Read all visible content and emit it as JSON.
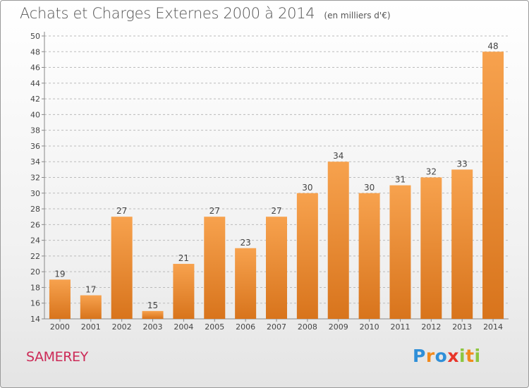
{
  "header": {
    "title": "Achats et Charges Externes 2000 à 2014",
    "unit": "(en milliers d'€)"
  },
  "footer": {
    "place": "SAMEREY",
    "brand_letters": [
      {
        "char": "P",
        "color": "#2f8fd8"
      },
      {
        "char": "r",
        "color": "#f28a1c"
      },
      {
        "char": "o",
        "color": "#2f8fd8"
      },
      {
        "char": "x",
        "color": "#e8352a"
      },
      {
        "char": "i",
        "color": "#8cc63f"
      },
      {
        "char": "t",
        "color": "#f28a1c"
      },
      {
        "char": "i",
        "color": "#8cc63f"
      }
    ]
  },
  "colors": {
    "bar_top": "#f7a24e",
    "bar_bottom": "#d8741c",
    "grid": "#bbbbbb",
    "text": "#444444",
    "place": "#cc2a57"
  },
  "chart_data": {
    "type": "bar",
    "title": "Achats et Charges Externes 2000 à 2014",
    "subtitle": "(en milliers d'€)",
    "xlabel": "",
    "ylabel": "",
    "categories": [
      "2000",
      "2001",
      "2002",
      "2003",
      "2004",
      "2005",
      "2006",
      "2007",
      "2008",
      "2009",
      "2010",
      "2011",
      "2012",
      "2013",
      "2014"
    ],
    "values": [
      19,
      17,
      27,
      15,
      21,
      27,
      23,
      27,
      30,
      34,
      30,
      31,
      32,
      33,
      48
    ],
    "ylim": [
      14,
      50
    ],
    "yticks": [
      14,
      16,
      18,
      20,
      22,
      24,
      26,
      28,
      30,
      32,
      34,
      36,
      38,
      40,
      42,
      44,
      46,
      48,
      50
    ],
    "grid": "horizontal dashed",
    "legend": "none"
  }
}
